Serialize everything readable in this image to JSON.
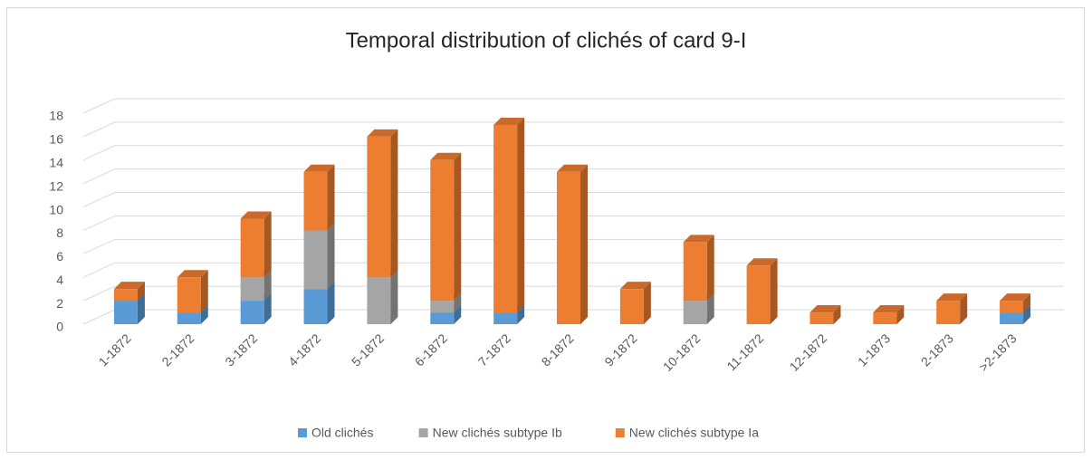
{
  "chart_data": {
    "type": "bar3d_stacked",
    "title": "Temporal distribution of clichés of card 9-I",
    "categories": [
      "1-1872",
      "2-1872",
      "3-1872",
      "4-1872",
      "5-1872",
      "6-1872",
      "7-1872",
      "8-1872",
      "9-1872",
      "10-1872",
      "11-1872",
      "12-1872",
      "1-1873",
      "2-1873",
      ">2-1873"
    ],
    "series": [
      {
        "name": "Old clichés",
        "color": "#5b9bd5",
        "values": [
          2,
          1,
          2,
          3,
          0,
          1,
          1,
          0,
          0,
          0,
          0,
          0,
          0,
          0,
          1
        ]
      },
      {
        "name": "New clichés subtype Ib",
        "color": "#a5a5a5",
        "values": [
          0,
          0,
          2,
          5,
          4,
          1,
          0,
          0,
          0,
          2,
          0,
          0,
          0,
          0,
          0
        ]
      },
      {
        "name": "New clichés subtype Ia",
        "color": "#ed7d31",
        "values": [
          1,
          3,
          5,
          5,
          12,
          12,
          16,
          13,
          3,
          5,
          5,
          1,
          1,
          2,
          1
        ]
      }
    ],
    "ylim": [
      0,
      18
    ],
    "yticks": [
      0,
      2,
      4,
      6,
      8,
      10,
      12,
      14,
      16,
      18
    ],
    "grid": true,
    "legend": "bottom"
  }
}
